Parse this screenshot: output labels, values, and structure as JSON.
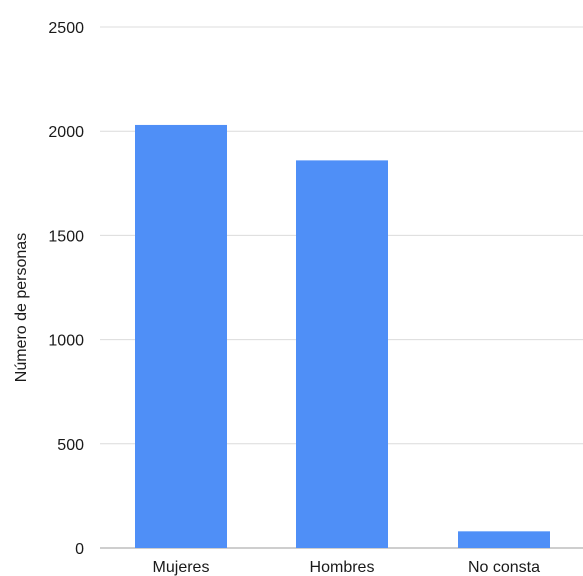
{
  "chart_data": {
    "type": "bar",
    "categories": [
      "Mujeres",
      "Hombres",
      "No consta"
    ],
    "values": [
      2030,
      1860,
      80
    ],
    "title": "",
    "xlabel": "",
    "ylabel": "Número de personas",
    "ylim": [
      0,
      2500
    ],
    "yticks": [
      0,
      500,
      1000,
      1500,
      2000,
      2500
    ],
    "grid": true,
    "legend": "none",
    "colors": {
      "bar": "#4f8ff7"
    }
  }
}
